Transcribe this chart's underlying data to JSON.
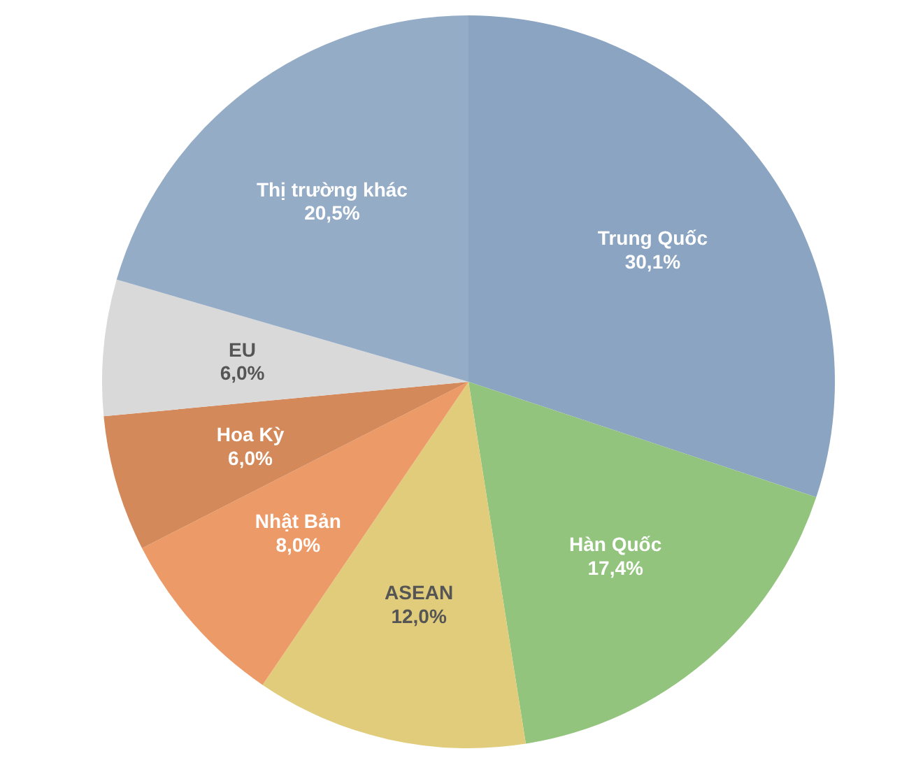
{
  "chart_data": {
    "type": "pie",
    "categories": [
      "Trung Quốc",
      "Hàn Quốc",
      "ASEAN",
      "Nhật Bản",
      "Hoa Kỳ",
      "EU",
      "Thị trường khác"
    ],
    "values": [
      30.1,
      17.4,
      12.0,
      8.0,
      6.0,
      6.0,
      20.5
    ],
    "value_labels": [
      "30,1%",
      "17,4%",
      "12,0%",
      "8,0%",
      "6,0%",
      "6,0%",
      "20,5%"
    ],
    "colors": [
      "#8aa4c1",
      "#93c47d",
      "#e0cc7a",
      "#ec9a68",
      "#d4895a",
      "#d9d9d9",
      "#95acc7"
    ],
    "legend": false
  }
}
